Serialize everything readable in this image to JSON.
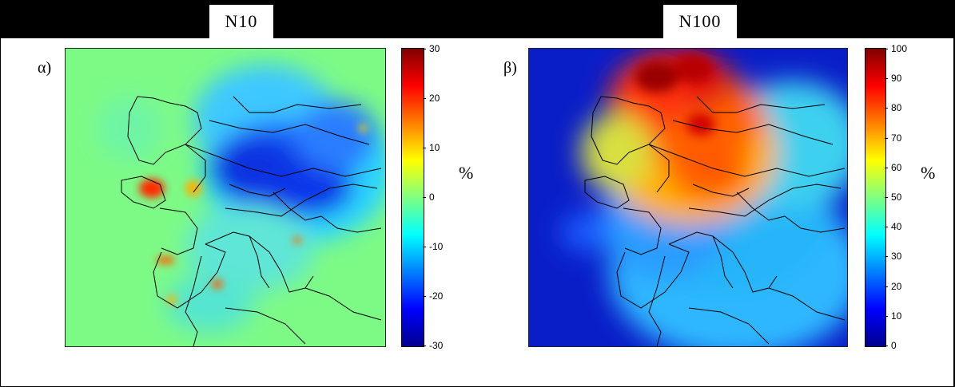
{
  "panels": [
    {
      "title": "N10",
      "label": "α)",
      "unit": "%",
      "colorbar": {
        "min": -30,
        "max": 30,
        "ticks": [
          "30",
          "20",
          "10",
          "0",
          "-10",
          "-20",
          "-30"
        ]
      }
    },
    {
      "title": "N100",
      "label": "β)",
      "unit": "%",
      "colorbar": {
        "min": 0,
        "max": 100,
        "ticks": [
          "100",
          "90",
          "80",
          "70",
          "60",
          "50",
          "40",
          "30",
          "20",
          "10",
          "0"
        ]
      }
    }
  ],
  "colors": {
    "jet": [
      "#00008f",
      "#0000ff",
      "#0080ff",
      "#00ffff",
      "#80ff80",
      "#ffff00",
      "#ff8000",
      "#ff0000",
      "#800000"
    ],
    "frame": "#000000",
    "background": "#ffffff"
  }
}
